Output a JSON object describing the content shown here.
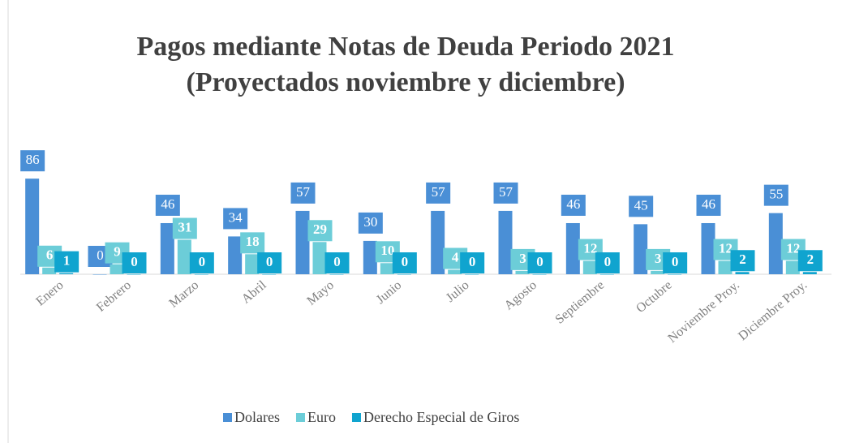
{
  "chart_data": {
    "type": "bar",
    "title": "Pagos mediante Notas de Deuda Periodo 2021",
    "subtitle": "(Proyectados noviembre y diciembre)",
    "categories": [
      "Enero",
      "Febrero",
      "Marzo",
      "Abril",
      "Mayo",
      "Junio",
      "Julio",
      "Agosto",
      "Septiembre",
      "Octubre",
      "Noviembre Proy.",
      "Diciembre Proy."
    ],
    "series": [
      {
        "name": "Dolares",
        "color": "#4a8fd6",
        "values": [
          86,
          0,
          46,
          34,
          57,
          30,
          57,
          57,
          46,
          45,
          46,
          55
        ]
      },
      {
        "name": "Euro",
        "color": "#6ccdd8",
        "values": [
          6,
          9,
          31,
          18,
          29,
          10,
          4,
          3,
          12,
          3,
          12,
          12
        ]
      },
      {
        "name": "Derecho Especial de Giros",
        "color": "#10a4cf",
        "values": [
          1,
          0,
          0,
          0,
          0,
          0,
          0,
          0,
          0,
          0,
          2,
          2
        ]
      }
    ],
    "ylim": [
      0,
      100
    ]
  }
}
